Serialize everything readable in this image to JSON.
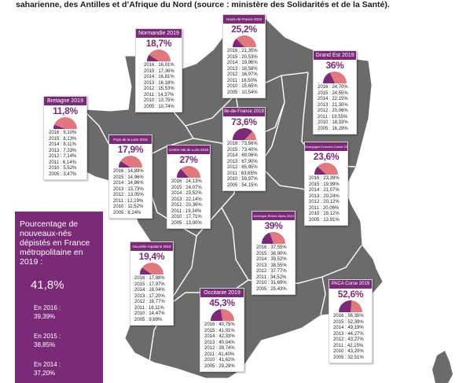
{
  "header_text": "saharienne, des Antilles et d’Afrique du Nord (source : ministère des Solidarités et de la Santé).",
  "sidebar": {
    "label": "Pourcentage de nouveaux-nés dépistés en France métropolitaine en 2019 :",
    "value": "41,8%",
    "previous": [
      {
        "year_label": "En 2016 :",
        "value": "39,39%"
      },
      {
        "year_label": "En 2015 :",
        "value": "38,85%"
      },
      {
        "year_label": "En 2014 :",
        "value": "37,20%"
      }
    ]
  },
  "colors": {
    "brand": "#7b2a78",
    "map_fill": "#6b6b6b",
    "map_border": "#ffffff",
    "gauge_front": "#7b2a78",
    "gauge_back": "#e07880"
  },
  "regions": [
    {
      "name": "Normandie 2019",
      "pct": "18,7%",
      "fraction": 0.187,
      "rows": [
        "2016 : 16,01%",
        "2015 : 17,36%",
        "2014 : 16,81%",
        "2013 : 16,18%",
        "2012 : 15,53%",
        "2011 : 14,37%",
        "2010 : 13,75%",
        "2005 : 10,74%"
      ]
    },
    {
      "name": "Hauts-de-France 2019",
      "pct": "25,2%",
      "fraction": 0.252,
      "rows": [
        "2016 : 21,35%",
        "2015 : 20,53%",
        "2014 : 19,96%",
        "2013 : 18,58%",
        "2012 : 16,97%",
        "2011 : 16,50%",
        "2010 : 15,65%",
        "2005 : 10,54%"
      ]
    },
    {
      "name": "Grand Est 2019",
      "pct": "36%",
      "fraction": 0.36,
      "rows": [
        "2016 : 24,70%",
        "2015 : 24,55%",
        "2014 : 22,15%",
        "2013 : 21,30%",
        "2012 : 20,06%",
        "2011 : 19,55%",
        "2010 : 18,33%",
        "2005 : 16,29%"
      ]
    },
    {
      "name": "Bretagne 2019",
      "pct": "11,8%",
      "fraction": 0.118,
      "rows": [
        "2016 : 9,10%",
        "2015 : 8,13%",
        "2014 : 8,11%",
        "2013 : 7,33%",
        "2012 : 7,14%",
        "2011 : 6,14%",
        "2010 : 5,52%",
        "2005 : 3,47%"
      ]
    },
    {
      "name": "Ile-de-France 2019",
      "pct": "73,6%",
      "fraction": 0.736,
      "rows": [
        "2016 : 73,56%",
        "2015 : 73,40%",
        "2014 : 69,06%",
        "2013 : 67,90%",
        "2012 : 65,95%",
        "2011 : 63,65%",
        "2010 : 59,97%",
        "2005 : 54,15%"
      ]
    },
    {
      "name": "Pays de la Loire 2019",
      "pct": "17,9%",
      "fraction": 0.179,
      "rows": [
        "2016 : 14,89%",
        "2015 : 14,96%",
        "2014 : 14,86%",
        "2013 : 13,73%",
        "2012 : 13,05%",
        "2011 : 12,19%",
        "2010 : 11,52%",
        "2005 : 8,24%"
      ]
    },
    {
      "name": "Centre-Val de Loire 2019",
      "pct": "27%",
      "fraction": 0.27,
      "rows": [
        "2016 : 24,13%",
        "2015 : 24,07%",
        "2014 : 23,52%",
        "2013 : 22,14%",
        "2012 : 20,36%",
        "2011 : 19,34%",
        "2010 : 17,71%",
        "2005 : 13,00%"
      ]
    },
    {
      "name": "Bourgogne-Franche-Comté 2019",
      "pct": "23,6%",
      "fraction": 0.236,
      "rows": [
        "2016 : 23,39%",
        "2015 : 19,99%",
        "2014 : 21,07%",
        "2013 : 20,24%",
        "2012 : 20,12%",
        "2011 : 20,06%",
        "2010 : 19,12%",
        "2005 : 13,91%"
      ]
    },
    {
      "name": "Auvergne-Rhône-Alpes 2019",
      "pct": "39%",
      "fraction": 0.39,
      "rows": [
        "2016 : 37,55%",
        "2015 : 38,90%",
        "2014 : 39,52%",
        "2013 : 38,55%",
        "2012 : 37,77%",
        "2011 : 34,52%",
        "2010 : 31,69%",
        "2005 : 25,43%"
      ]
    },
    {
      "name": "Nouvelle-Aquitaine 2019",
      "pct": "19,4%",
      "fraction": 0.194,
      "rows": [
        "2016 : 17,88%",
        "2015 : 17,97%",
        "2014 : 18,04%",
        "2013 : 17,20%",
        "2012 : 16,77%",
        "2011 : 16,11%",
        "2010 : 14,47%",
        "2005 : 9,89%"
      ]
    },
    {
      "name": "Occitanie 2019",
      "pct": "45,3%",
      "fraction": 0.453,
      "rows": [
        "2016 : 40,75%",
        "2015 : 41,91%",
        "2014 : 42,33%",
        "2013 : 40,04%",
        "2012 : 39,74%",
        "2011 : 41,40%",
        "2010 : 41,62%",
        "2005 : 29,29%"
      ]
    },
    {
      "name": "PACA Corse 2019",
      "pct": "52,6%",
      "fraction": 0.526,
      "rows": [
        "2016 : 56,35%",
        "2015 : 52,39%",
        "2014 : 49,19%",
        "2013 : 44,27%",
        "2012 : 43,27%",
        "2011 : 42,15%",
        "2010 : 43,20%",
        "2005 : 32,51%"
      ]
    }
  ]
}
